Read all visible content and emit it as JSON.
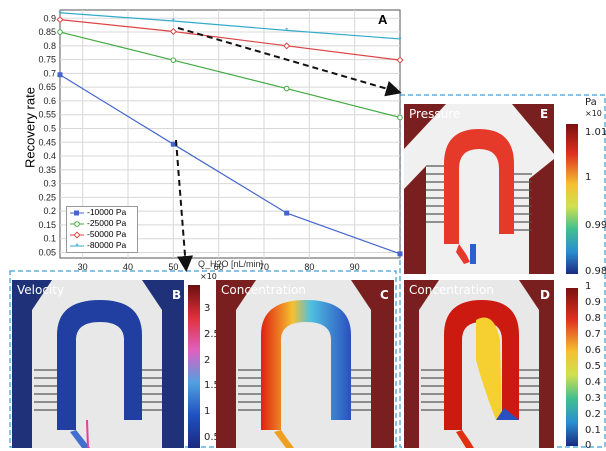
{
  "chart_data": {
    "type": "line",
    "panel_label": "A",
    "xlabel": "Q_H2O [nL/min]",
    "ylabel": "Recovery rate",
    "xlim": [
      25,
      100
    ],
    "ylim": [
      0.03,
      0.93
    ],
    "x_ticks": [
      "30",
      "40",
      "50",
      "60",
      "70",
      "80",
      "90"
    ],
    "y_ticks": [
      "0.05",
      "0.1",
      "0.15",
      "0.2",
      "0.25",
      "0.3",
      "0.35",
      "0.4",
      "0.45",
      "0.5",
      "0.55",
      "0.6",
      "0.65",
      "0.7",
      "0.75",
      "0.8",
      "0.85",
      "0.9"
    ],
    "grid": true,
    "legend_position": "bottom-left",
    "series": [
      {
        "name": "-10000 Pa",
        "color": "#4466cc",
        "marker": "square-filled",
        "x": [
          25,
          50,
          75,
          100
        ],
        "y": [
          0.695,
          0.443,
          0.193,
          0.045
        ]
      },
      {
        "name": "-25000 Pa",
        "color": "#44aa44",
        "marker": "circle",
        "x": [
          25,
          50,
          75,
          100
        ],
        "y": [
          0.85,
          0.748,
          0.645,
          0.54
        ]
      },
      {
        "name": "-50000 Pa",
        "color": "#dd4444",
        "marker": "diamond",
        "x": [
          25,
          50,
          75,
          100
        ],
        "y": [
          0.895,
          0.852,
          0.8,
          0.748
        ]
      },
      {
        "name": "-80000 Pa",
        "color": "#33aacc",
        "marker": "star",
        "x": [
          25,
          50,
          75,
          100
        ],
        "y": [
          0.92,
          0.89,
          0.856,
          0.825
        ]
      }
    ]
  },
  "panels": {
    "pressure": {
      "title": "Pressure",
      "letter": "E",
      "unit": "Pa",
      "exponent": "×10",
      "ticks": [
        "1.01",
        "1",
        "0.99",
        "0.98"
      ]
    },
    "velocity": {
      "title": "Velocity",
      "letter": "B",
      "exponent": "×10",
      "ticks": [
        "3",
        "2.5",
        "2",
        "1.5",
        "1",
        "0.5"
      ]
    },
    "concentration_c": {
      "title": "Concentration",
      "letter": "C"
    },
    "concentration_d": {
      "title": "Concentration",
      "letter": "D",
      "ticks": [
        "1",
        "0.9",
        "0.8",
        "0.7",
        "0.6",
        "0.5",
        "0.4",
        "0.3",
        "0.2",
        "0.1",
        "0"
      ]
    }
  }
}
